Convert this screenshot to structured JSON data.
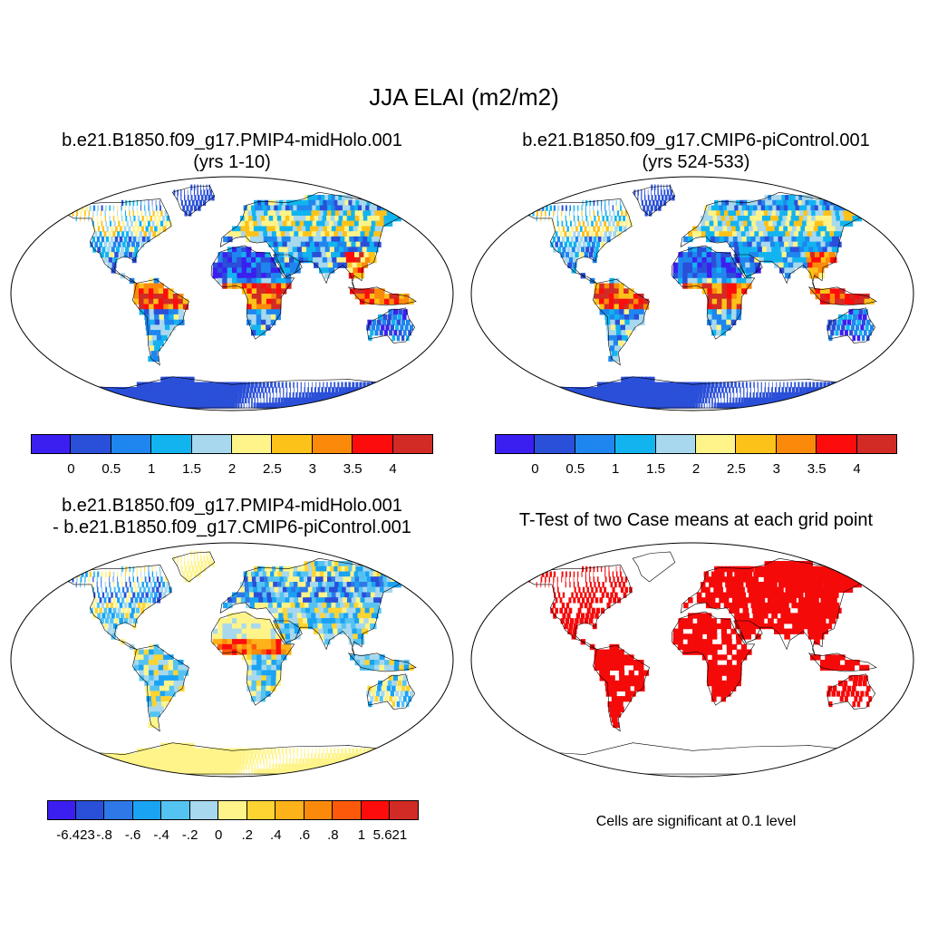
{
  "title": "JJA ELAI (m2/m2)",
  "panels": [
    {
      "id": "p1",
      "line1": "b.e21.B1850.f09_g17.PMIP4-midHolo.001",
      "line2": "(yrs 1-10)",
      "field": "absolute"
    },
    {
      "id": "p2",
      "line1": "b.e21.B1850.f09_g17.CMIP6-piControl.001",
      "line2": "(yrs 524-533)",
      "field": "absolute"
    },
    {
      "id": "p3",
      "line1": "b.e21.B1850.f09_g17.PMIP4-midHolo.001",
      "line2": "- b.e21.B1850.f09_g17.CMIP6-piControl.001",
      "field": "difference"
    },
    {
      "id": "p4",
      "line1": "T-Test of two Case means at each grid point",
      "field": "significance"
    }
  ],
  "significance_note": "Cells are significant at 0.1 level",
  "colorbars": {
    "absolute": {
      "colors": [
        "#3b1ff0",
        "#2a4fd8",
        "#1e86ee",
        "#12b4f0",
        "#a7d8ee",
        "#fff48a",
        "#fdc21a",
        "#fc8a0a",
        "#fc0d0b",
        "#d22a25"
      ],
      "labels": [
        "0",
        "0.5",
        "1",
        "1.5",
        "2",
        "2.5",
        "3",
        "3.5",
        "4"
      ]
    },
    "difference": {
      "colors": [
        "#3b1ff0",
        "#2a4fd8",
        "#2e78e8",
        "#1aa2f3",
        "#55c3f2",
        "#a7d8ee",
        "#fff48a",
        "#fdd432",
        "#fdb21a",
        "#fc8a0a",
        "#fc5a0a",
        "#fc0d0b",
        "#d22a25"
      ],
      "labels": [
        "-6.423",
        "-.8",
        "-.6",
        "-.4",
        "-.2",
        "0",
        ".2",
        ".4",
        ".6",
        ".8",
        "1",
        "5.621"
      ]
    }
  },
  "colors": {
    "ocean": "#ffffff",
    "outline": "#000000",
    "significant": "#f50a0a"
  }
}
